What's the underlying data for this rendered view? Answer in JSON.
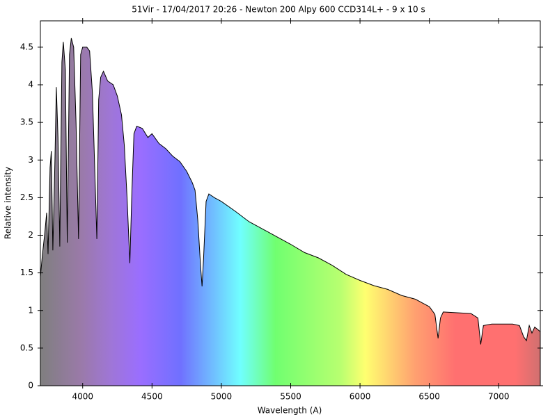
{
  "chart_data": {
    "type": "area",
    "title": "51Vir - 17/04/2017 20:26 - Newton 200 Alpy 600 CCD314L+ - 9 x 10 s",
    "x_label": "Wavelength (A)",
    "y_label": "Relative intensity",
    "x": [
      3695,
      3710,
      3725,
      3740,
      3750,
      3765,
      3774,
      3785,
      3800,
      3810,
      3822,
      3835,
      3850,
      3860,
      3875,
      3889,
      3905,
      3918,
      3935,
      3952,
      3970,
      3985,
      4000,
      4030,
      4050,
      4070,
      4085,
      4102,
      4115,
      4130,
      4150,
      4180,
      4220,
      4250,
      4280,
      4300,
      4320,
      4340,
      4355,
      4370,
      4390,
      4430,
      4470,
      4500,
      4550,
      4600,
      4650,
      4700,
      4750,
      4790,
      4810,
      4830,
      4850,
      4861,
      4872,
      4890,
      4910,
      4950,
      5000,
      5100,
      5200,
      5300,
      5400,
      5500,
      5600,
      5700,
      5800,
      5900,
      6000,
      6100,
      6200,
      6300,
      6400,
      6450,
      6500,
      6540,
      6563,
      6580,
      6600,
      6700,
      6800,
      6850,
      6870,
      6890,
      6950,
      7000,
      7100,
      7150,
      7180,
      7200,
      7220,
      7240,
      7260,
      7300
    ],
    "values": [
      1.45,
      1.75,
      2.0,
      2.3,
      1.75,
      2.9,
      3.12,
      1.8,
      3.0,
      3.97,
      3.3,
      1.85,
      4.3,
      4.57,
      4.2,
      1.9,
      4.4,
      4.62,
      4.5,
      3.5,
      1.95,
      4.4,
      4.5,
      4.5,
      4.45,
      3.9,
      3.0,
      1.95,
      3.8,
      4.1,
      4.18,
      4.05,
      4.0,
      3.85,
      3.6,
      3.2,
      2.5,
      1.63,
      2.6,
      3.35,
      3.45,
      3.42,
      3.3,
      3.35,
      3.22,
      3.15,
      3.05,
      2.98,
      2.85,
      2.7,
      2.6,
      2.2,
      1.6,
      1.32,
      1.7,
      2.45,
      2.55,
      2.5,
      2.45,
      2.32,
      2.18,
      2.08,
      1.98,
      1.88,
      1.77,
      1.7,
      1.6,
      1.48,
      1.4,
      1.33,
      1.28,
      1.2,
      1.15,
      1.1,
      1.05,
      0.95,
      0.63,
      0.9,
      0.98,
      0.97,
      0.96,
      0.9,
      0.55,
      0.8,
      0.82,
      0.82,
      0.82,
      0.8,
      0.65,
      0.6,
      0.8,
      0.7,
      0.78,
      0.72
    ],
    "color": "#000000",
    "xlim": [
      3695,
      7300
    ],
    "xticks": [
      4000,
      4500,
      5000,
      5500,
      6000,
      6500,
      7000
    ],
    "ylim": [
      0,
      4.85
    ],
    "yticks": [
      0,
      0.5,
      1,
      1.5,
      2,
      2.5,
      3,
      3.5,
      4,
      4.5
    ]
  }
}
